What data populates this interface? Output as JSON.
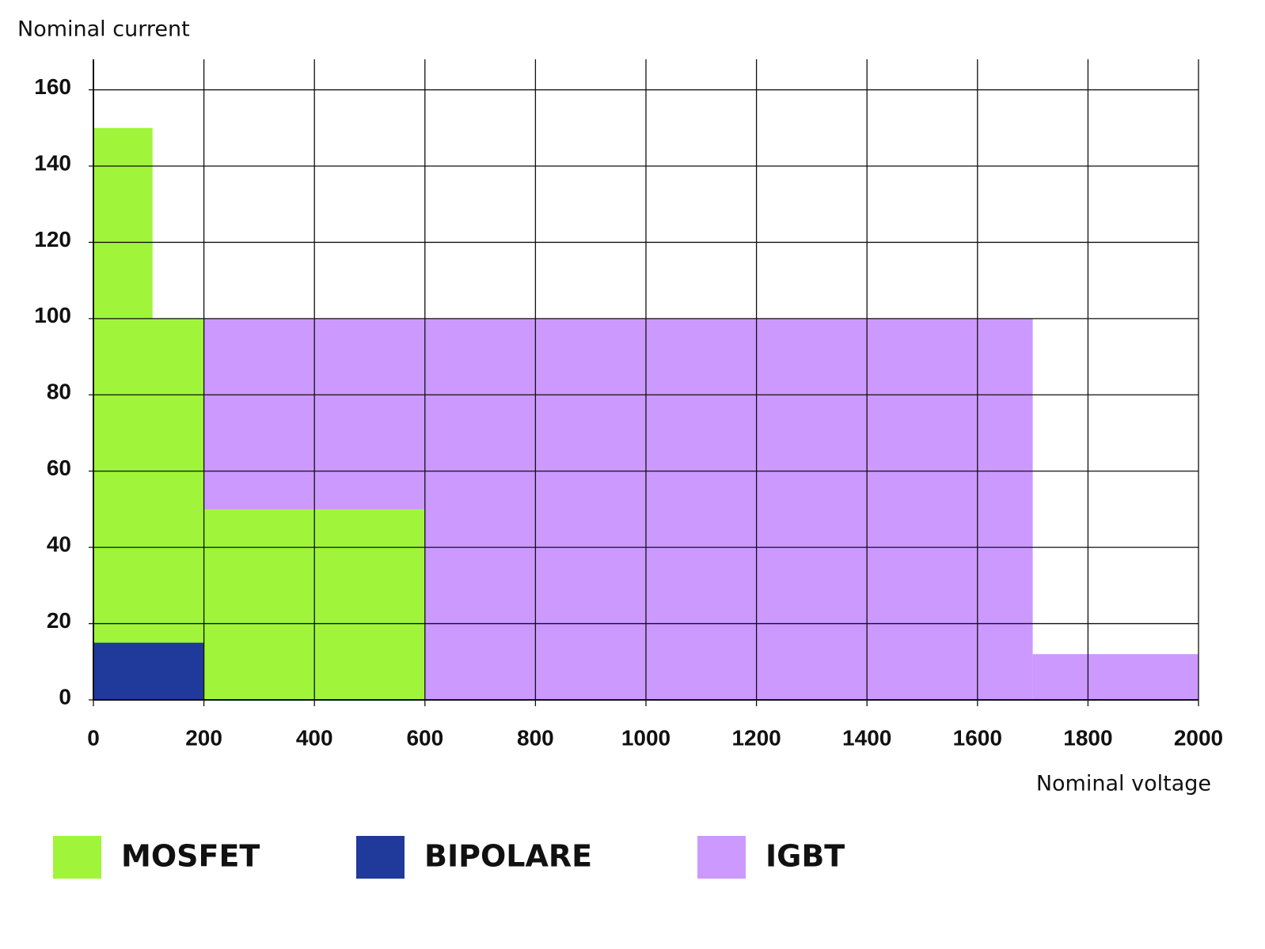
{
  "chart_data": {
    "type": "region",
    "y_label": "Nominal current",
    "x_label": "Nominal voltage",
    "xlim": [
      0,
      2000
    ],
    "xticks": [
      0,
      200,
      400,
      600,
      800,
      1000,
      1200,
      1400,
      1600,
      1800,
      2000
    ],
    "ylim": [
      0,
      168
    ],
    "yticks": [
      0,
      20,
      40,
      60,
      80,
      100,
      120,
      140,
      160
    ],
    "grid": true,
    "legend": "bottom",
    "series": [
      {
        "name": "MOSFET",
        "color": "#a0f53a",
        "x0": [
          0,
          0,
          200
        ],
        "x1": [
          107,
          200,
          600
        ],
        "values": [
          150,
          100,
          50
        ]
      },
      {
        "name": "BIPOLARE",
        "color": "#1f3a9a",
        "x0": [
          0
        ],
        "x1": [
          200
        ],
        "values": [
          15
        ]
      },
      {
        "name": "IGBT",
        "color": "#cc99ff",
        "x0": [
          200,
          1700
        ],
        "x1": [
          1700,
          2000
        ],
        "values": [
          100,
          12
        ]
      }
    ]
  }
}
